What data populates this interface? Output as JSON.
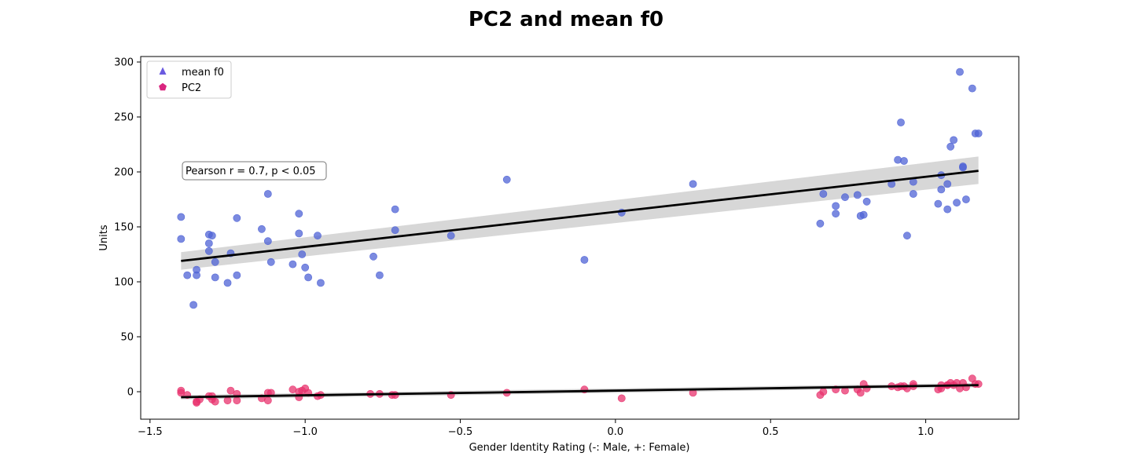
{
  "chart_data": {
    "type": "scatter",
    "title": "PC2 and mean f0",
    "xlabel": "Gender Identity Rating (-: Male, +: Female)",
    "ylabel": "Units",
    "xlim": [
      -1.53,
      1.3
    ],
    "ylim": [
      -25,
      305
    ],
    "xticks": [
      -1.5,
      -1.0,
      -0.5,
      0.0,
      0.5,
      1.0
    ],
    "xtick_labels": [
      "−1.5",
      "−1.0",
      "−0.5",
      "0.0",
      "0.5",
      "1.0"
    ],
    "yticks": [
      0,
      50,
      100,
      150,
      200,
      250,
      300
    ],
    "ytick_labels": [
      "0",
      "50",
      "100",
      "150",
      "200",
      "250",
      "300"
    ],
    "grid": false,
    "legend_position": "top-left",
    "annotation": "Pearson r = 0.7, p < 0.05",
    "series": [
      {
        "name": "mean f0",
        "marker": "triangle",
        "color": "#4f63d6",
        "fit": {
          "x": [
            -1.4,
            1.17
          ],
          "y": [
            119,
            201
          ]
        },
        "band": {
          "x": [
            -1.4,
            1.17
          ],
          "upper": [
            127,
            214
          ],
          "lower": [
            111,
            189
          ]
        },
        "x": [
          -1.4,
          -1.4,
          -1.38,
          -1.36,
          -1.35,
          -1.35,
          -1.31,
          -1.31,
          -1.31,
          -1.3,
          -1.29,
          -1.29,
          -1.25,
          -1.24,
          -1.22,
          -1.22,
          -1.14,
          -1.12,
          -1.12,
          -1.11,
          -1.04,
          -1.02,
          -1.02,
          -1.01,
          -1.0,
          -0.99,
          -0.96,
          -0.95,
          -0.78,
          -0.76,
          -0.71,
          -0.71,
          -0.53,
          -0.35,
          -0.1,
          0.02,
          0.25,
          0.66,
          0.67,
          0.71,
          0.71,
          0.74,
          0.78,
          0.79,
          0.8,
          0.81,
          0.89,
          0.91,
          0.92,
          0.93,
          0.94,
          0.96,
          0.96,
          1.04,
          1.05,
          1.05,
          1.07,
          1.07,
          1.08,
          1.09,
          1.1,
          1.11,
          1.12,
          1.12,
          1.13,
          1.15,
          1.16,
          1.17
        ],
        "y": [
          159,
          139,
          106,
          79,
          106,
          111,
          143,
          135,
          128,
          142,
          118,
          104,
          99,
          126,
          158,
          106,
          148,
          137,
          180,
          118,
          116,
          162,
          144,
          125,
          113,
          104,
          142,
          99,
          123,
          106,
          166,
          147,
          142,
          193,
          120,
          163,
          189,
          153,
          180,
          169,
          162,
          177,
          179,
          160,
          161,
          173,
          189,
          211,
          245,
          210,
          142,
          180,
          191,
          171,
          184,
          197,
          166,
          189,
          223,
          229,
          172,
          291,
          205,
          204,
          175,
          276,
          235,
          235
        ]
      },
      {
        "name": "PC2",
        "marker": "pentagon",
        "color": "#e8336e",
        "fit": {
          "x": [
            -1.4,
            1.17
          ],
          "y": [
            -5,
            6
          ]
        },
        "band": {
          "x": [
            -1.4,
            1.17
          ],
          "upper": [
            -3,
            8
          ],
          "lower": [
            -7,
            4
          ]
        },
        "x": [
          -1.4,
          -1.4,
          -1.38,
          -1.35,
          -1.35,
          -1.34,
          -1.31,
          -1.3,
          -1.3,
          -1.29,
          -1.25,
          -1.24,
          -1.22,
          -1.22,
          -1.14,
          -1.12,
          -1.12,
          -1.11,
          -1.04,
          -1.02,
          -1.02,
          -1.01,
          -1.0,
          -0.99,
          -0.96,
          -0.95,
          -0.79,
          -0.76,
          -0.72,
          -0.71,
          -0.53,
          -0.35,
          -0.1,
          0.02,
          0.25,
          0.66,
          0.67,
          0.71,
          0.74,
          0.78,
          0.79,
          0.8,
          0.81,
          0.89,
          0.91,
          0.92,
          0.93,
          0.94,
          0.96,
          0.96,
          1.04,
          1.05,
          1.05,
          1.07,
          1.07,
          1.08,
          1.09,
          1.1,
          1.11,
          1.12,
          1.13,
          1.15,
          1.16,
          1.17
        ],
        "y": [
          1,
          -1,
          -3,
          -10,
          -9,
          -7,
          -4,
          -7,
          -4,
          -9,
          -8,
          1,
          -2,
          -8,
          -6,
          -8,
          -1,
          -1,
          2,
          0,
          -5,
          1,
          3,
          -1,
          -4,
          -3,
          -2,
          -2,
          -3,
          -3,
          -3,
          -1,
          2,
          -6,
          -1,
          -3,
          0,
          2,
          1,
          2,
          -1,
          7,
          3,
          5,
          4,
          5,
          5,
          3,
          7,
          5,
          2,
          6,
          3,
          6,
          6,
          8,
          6,
          8,
          3,
          8,
          4,
          12,
          7,
          7
        ]
      }
    ]
  }
}
